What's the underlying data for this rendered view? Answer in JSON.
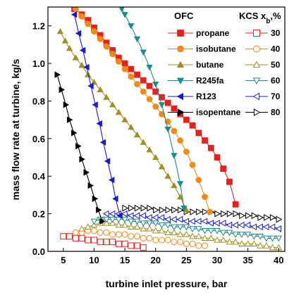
{
  "chart_data": {
    "type": "line",
    "title": "",
    "xlabel": "turbine inlet pressure, bar",
    "ylabel": "mass flow rate at turbine, kg/s",
    "xlim": [
      2.5,
      41
    ],
    "ylim": [
      0,
      1.3
    ],
    "xticks": [
      "5",
      "10",
      "15",
      "20",
      "25",
      "30",
      "35",
      "40"
    ],
    "yticks": [
      "0.0",
      "0.2",
      "0.4",
      "0.6",
      "0.8",
      "1.0",
      "1.2"
    ],
    "grid": false,
    "legend_ofc_title": "OFC",
    "legend_kcs_title": "KCS x",
    "legend_kcs_sub": "b",
    "legend_kcs_suffix": ",%",
    "ofc_series": [
      {
        "name": "propane",
        "color": "#e8201c",
        "marker": "square",
        "filled": true,
        "points": [
          [
            6.8,
            1.29
          ],
          [
            8,
            1.26
          ],
          [
            9,
            1.23
          ],
          [
            10,
            1.19
          ],
          [
            11,
            1.15
          ],
          [
            12,
            1.11
          ],
          [
            13,
            1.07
          ],
          [
            14,
            1.03
          ],
          [
            15,
            1.0
          ],
          [
            16,
            0.97
          ],
          [
            17,
            0.94
          ],
          [
            18,
            0.91
          ],
          [
            19,
            0.88
          ],
          [
            20,
            0.85
          ],
          [
            21,
            0.82
          ],
          [
            22,
            0.79
          ],
          [
            23,
            0.76
          ],
          [
            24,
            0.73
          ],
          [
            25,
            0.7
          ],
          [
            26,
            0.67
          ],
          [
            27,
            0.63
          ],
          [
            28,
            0.59
          ],
          [
            29,
            0.55
          ],
          [
            30,
            0.5
          ],
          [
            31,
            0.44
          ],
          [
            32,
            0.37
          ],
          [
            33,
            0.25
          ]
        ]
      },
      {
        "name": "isobutane",
        "color": "#f28a1a",
        "marker": "circle",
        "filled": true,
        "points": [
          [
            7,
            1.29
          ],
          [
            8,
            1.25
          ],
          [
            9,
            1.21
          ],
          [
            10,
            1.17
          ],
          [
            11,
            1.13
          ],
          [
            12,
            1.09
          ],
          [
            13,
            1.05
          ],
          [
            14,
            1.01
          ],
          [
            15,
            0.97
          ],
          [
            16,
            0.93
          ],
          [
            17,
            0.89
          ],
          [
            18,
            0.85
          ],
          [
            19,
            0.81
          ],
          [
            20,
            0.77
          ],
          [
            21,
            0.73
          ],
          [
            22,
            0.69
          ],
          [
            23,
            0.64
          ],
          [
            24,
            0.59
          ],
          [
            25,
            0.53
          ],
          [
            26,
            0.46
          ],
          [
            27,
            0.38
          ],
          [
            28,
            0.29
          ],
          [
            28.8,
            0.21
          ]
        ]
      },
      {
        "name": "butane",
        "color": "#a09020",
        "marker": "triangle-up",
        "filled": true,
        "points": [
          [
            4.5,
            1.17
          ],
          [
            5.3,
            1.12
          ],
          [
            6,
            1.08
          ],
          [
            7,
            1.03
          ],
          [
            8,
            0.99
          ],
          [
            9,
            0.94
          ],
          [
            10,
            0.9
          ],
          [
            11,
            0.86
          ],
          [
            12,
            0.82
          ],
          [
            13,
            0.78
          ],
          [
            14,
            0.74
          ],
          [
            15,
            0.7
          ],
          [
            16,
            0.66
          ],
          [
            17,
            0.62
          ],
          [
            18,
            0.58
          ],
          [
            19,
            0.54
          ],
          [
            20,
            0.5
          ],
          [
            21,
            0.45
          ],
          [
            22,
            0.4
          ],
          [
            23,
            0.35
          ],
          [
            24,
            0.29
          ],
          [
            25,
            0.22
          ]
        ]
      },
      {
        "name": "R245fa",
        "color": "#1a8c8c",
        "marker": "triangle-down",
        "filled": true,
        "points": [
          [
            14.5,
            1.29
          ],
          [
            15,
            1.26
          ],
          [
            16,
            1.2
          ],
          [
            17,
            1.13
          ],
          [
            18,
            1.06
          ],
          [
            19,
            0.98
          ],
          [
            20,
            0.89
          ],
          [
            21,
            0.78
          ],
          [
            22,
            0.65
          ],
          [
            23,
            0.51
          ],
          [
            24,
            0.36
          ],
          [
            24.6,
            0.23
          ]
        ]
      },
      {
        "name": "R123",
        "color": "#1a1acc",
        "marker": "triangle-left",
        "filled": true,
        "points": [
          [
            6.8,
            1.26
          ],
          [
            7.5,
            1.16
          ],
          [
            8.2,
            1.07
          ],
          [
            8.8,
            0.98
          ],
          [
            9.5,
            0.88
          ],
          [
            10.2,
            0.78
          ],
          [
            10.9,
            0.68
          ],
          [
            11.5,
            0.58
          ],
          [
            12.2,
            0.48
          ],
          [
            12.9,
            0.38
          ],
          [
            13.5,
            0.28
          ],
          [
            14.2,
            0.19
          ]
        ]
      },
      {
        "name": "isopentane",
        "color": "#000000",
        "marker": "triangle-right",
        "filled": true,
        "points": [
          [
            4,
            0.94
          ],
          [
            4.7,
            0.86
          ],
          [
            5.4,
            0.78
          ],
          [
            6,
            0.7
          ],
          [
            6.7,
            0.63
          ],
          [
            7.4,
            0.56
          ],
          [
            8,
            0.49
          ],
          [
            8.7,
            0.42
          ],
          [
            9.4,
            0.35
          ],
          [
            10.1,
            0.28
          ],
          [
            10.7,
            0.22
          ],
          [
            11.3,
            0.16
          ]
        ]
      }
    ],
    "kcs_series": [
      {
        "name": "30",
        "color": "#e8201c",
        "marker": "square",
        "filled": false,
        "points": [
          [
            5,
            0.08
          ],
          [
            6,
            0.08
          ],
          [
            7,
            0.07
          ],
          [
            8,
            0.07
          ],
          [
            9,
            0.06
          ],
          [
            10,
            0.06
          ],
          [
            11,
            0.05
          ],
          [
            12,
            0.05
          ],
          [
            13,
            0.05
          ],
          [
            14,
            0.04
          ],
          [
            15,
            0.04
          ],
          [
            16,
            0.03
          ],
          [
            17,
            0.03
          ],
          [
            18,
            0.02
          ]
        ]
      },
      {
        "name": "40",
        "color": "#f28a1a",
        "marker": "circle",
        "filled": false,
        "points": [
          [
            7,
            0.1
          ],
          [
            8,
            0.1
          ],
          [
            9,
            0.11
          ],
          [
            10,
            0.11
          ],
          [
            11,
            0.1
          ],
          [
            12,
            0.1
          ],
          [
            13,
            0.09
          ],
          [
            14,
            0.09
          ],
          [
            15,
            0.09
          ],
          [
            16,
            0.08
          ],
          [
            17,
            0.08
          ],
          [
            18,
            0.07
          ],
          [
            19,
            0.07
          ],
          [
            20,
            0.06
          ],
          [
            21,
            0.06
          ],
          [
            22,
            0.06
          ],
          [
            23,
            0.05
          ],
          [
            24,
            0.05
          ],
          [
            25,
            0.04
          ],
          [
            26,
            0.04
          ],
          [
            27,
            0.03
          ],
          [
            28,
            0.03
          ]
        ]
      },
      {
        "name": "50",
        "color": "#a09020",
        "marker": "triangle-up",
        "filled": false,
        "points": [
          [
            8,
            0.12
          ],
          [
            9,
            0.13
          ],
          [
            10,
            0.14
          ],
          [
            11,
            0.15
          ],
          [
            12,
            0.15
          ],
          [
            13,
            0.15
          ],
          [
            14,
            0.14
          ],
          [
            15,
            0.14
          ],
          [
            16,
            0.13
          ],
          [
            17,
            0.13
          ],
          [
            18,
            0.12
          ],
          [
            19,
            0.12
          ],
          [
            20,
            0.11
          ],
          [
            21,
            0.11
          ],
          [
            22,
            0.1
          ],
          [
            23,
            0.1
          ],
          [
            24,
            0.09
          ],
          [
            25,
            0.09
          ],
          [
            26,
            0.08
          ],
          [
            27,
            0.08
          ],
          [
            28,
            0.07
          ],
          [
            29,
            0.07
          ],
          [
            30,
            0.06
          ],
          [
            31,
            0.06
          ],
          [
            32,
            0.05
          ],
          [
            33,
            0.05
          ],
          [
            34,
            0.04
          ],
          [
            35,
            0.04
          ],
          [
            36,
            0.04
          ],
          [
            37,
            0.03
          ],
          [
            38,
            0.03
          ],
          [
            39,
            0.02
          ],
          [
            40,
            0.02
          ]
        ]
      },
      {
        "name": "60",
        "color": "#1a8c8c",
        "marker": "triangle-down",
        "filled": false,
        "points": [
          [
            10,
            0.16
          ],
          [
            11,
            0.17
          ],
          [
            12,
            0.17
          ],
          [
            13,
            0.17
          ],
          [
            14,
            0.17
          ],
          [
            15,
            0.17
          ],
          [
            16,
            0.16
          ],
          [
            17,
            0.16
          ],
          [
            18,
            0.15
          ],
          [
            19,
            0.15
          ],
          [
            20,
            0.15
          ],
          [
            21,
            0.14
          ],
          [
            22,
            0.14
          ],
          [
            23,
            0.13
          ],
          [
            24,
            0.13
          ],
          [
            25,
            0.13
          ],
          [
            26,
            0.12
          ],
          [
            27,
            0.12
          ],
          [
            28,
            0.11
          ],
          [
            29,
            0.11
          ],
          [
            30,
            0.11
          ],
          [
            31,
            0.1
          ],
          [
            32,
            0.1
          ],
          [
            33,
            0.09
          ],
          [
            34,
            0.09
          ],
          [
            35,
            0.09
          ],
          [
            36,
            0.08
          ],
          [
            37,
            0.08
          ],
          [
            38,
            0.07
          ],
          [
            39,
            0.07
          ],
          [
            40,
            0.07
          ]
        ]
      },
      {
        "name": "70",
        "color": "#1a1acc",
        "marker": "triangle-left",
        "filled": false,
        "points": [
          [
            12,
            0.2
          ],
          [
            13,
            0.2
          ],
          [
            14,
            0.2
          ],
          [
            15,
            0.2
          ],
          [
            16,
            0.19
          ],
          [
            17,
            0.19
          ],
          [
            18,
            0.19
          ],
          [
            19,
            0.18
          ],
          [
            20,
            0.18
          ],
          [
            21,
            0.18
          ],
          [
            22,
            0.17
          ],
          [
            23,
            0.17
          ],
          [
            24,
            0.17
          ],
          [
            25,
            0.16
          ],
          [
            26,
            0.16
          ],
          [
            27,
            0.16
          ],
          [
            28,
            0.16
          ],
          [
            29,
            0.15
          ],
          [
            30,
            0.15
          ],
          [
            31,
            0.15
          ],
          [
            32,
            0.14
          ],
          [
            33,
            0.14
          ],
          [
            34,
            0.14
          ],
          [
            35,
            0.14
          ],
          [
            36,
            0.13
          ],
          [
            37,
            0.13
          ],
          [
            38,
            0.13
          ],
          [
            39,
            0.13
          ],
          [
            40,
            0.12
          ]
        ]
      },
      {
        "name": "80",
        "color": "#000000",
        "marker": "triangle-right",
        "filled": false,
        "points": [
          [
            15,
            0.23
          ],
          [
            16,
            0.23
          ],
          [
            17,
            0.23
          ],
          [
            18,
            0.23
          ],
          [
            19,
            0.23
          ],
          [
            20,
            0.22
          ],
          [
            21,
            0.22
          ],
          [
            22,
            0.22
          ],
          [
            23,
            0.22
          ],
          [
            24,
            0.22
          ],
          [
            25,
            0.21
          ],
          [
            26,
            0.21
          ],
          [
            27,
            0.21
          ],
          [
            28,
            0.21
          ],
          [
            29,
            0.21
          ],
          [
            30,
            0.2
          ],
          [
            31,
            0.2
          ],
          [
            32,
            0.2
          ],
          [
            33,
            0.2
          ],
          [
            34,
            0.19
          ],
          [
            35,
            0.19
          ],
          [
            36,
            0.19
          ],
          [
            37,
            0.18
          ],
          [
            38,
            0.18
          ],
          [
            39,
            0.18
          ],
          [
            40,
            0.17
          ]
        ]
      }
    ]
  }
}
